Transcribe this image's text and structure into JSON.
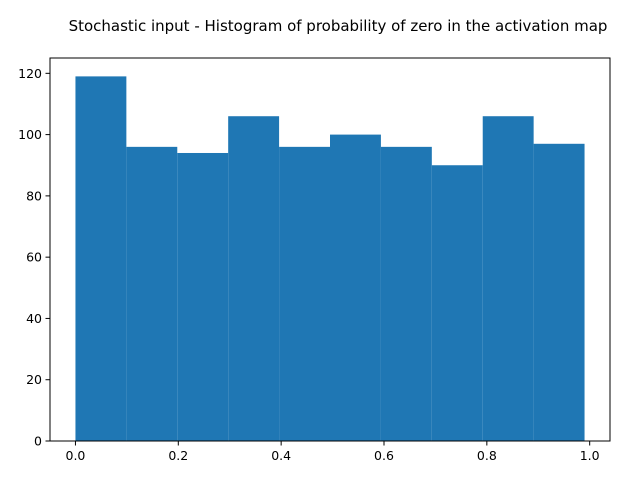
{
  "chart_data": {
    "type": "bar",
    "title": "Stochastic input - Histogram of probability of zero in the activation map",
    "xlabel": "",
    "ylabel": "",
    "bins": [
      {
        "x0": 0.0,
        "x1": 0.099,
        "count": 119
      },
      {
        "x0": 0.099,
        "x1": 0.198,
        "count": 96
      },
      {
        "x0": 0.198,
        "x1": 0.297,
        "count": 94
      },
      {
        "x0": 0.297,
        "x1": 0.396,
        "count": 106
      },
      {
        "x0": 0.396,
        "x1": 0.495,
        "count": 96
      },
      {
        "x0": 0.495,
        "x1": 0.594,
        "count": 100
      },
      {
        "x0": 0.594,
        "x1": 0.693,
        "count": 96
      },
      {
        "x0": 0.693,
        "x1": 0.792,
        "count": 90
      },
      {
        "x0": 0.792,
        "x1": 0.891,
        "count": 106
      },
      {
        "x0": 0.891,
        "x1": 0.99,
        "count": 97
      }
    ],
    "xlim": [
      -0.0495,
      1.0395
    ],
    "ylim": [
      0,
      125
    ],
    "xticks": [
      {
        "value": 0.0,
        "label": "0.0"
      },
      {
        "value": 0.2,
        "label": "0.2"
      },
      {
        "value": 0.4,
        "label": "0.4"
      },
      {
        "value": 0.6,
        "label": "0.6"
      },
      {
        "value": 0.8,
        "label": "0.8"
      },
      {
        "value": 1.0,
        "label": "1.0"
      }
    ],
    "yticks": [
      {
        "value": 0,
        "label": "0"
      },
      {
        "value": 20,
        "label": "20"
      },
      {
        "value": 40,
        "label": "40"
      },
      {
        "value": 60,
        "label": "60"
      },
      {
        "value": 80,
        "label": "80"
      },
      {
        "value": 100,
        "label": "100"
      },
      {
        "value": 120,
        "label": "120"
      }
    ],
    "bar_color": "#1f77b4",
    "grid": false,
    "legend": "none"
  }
}
